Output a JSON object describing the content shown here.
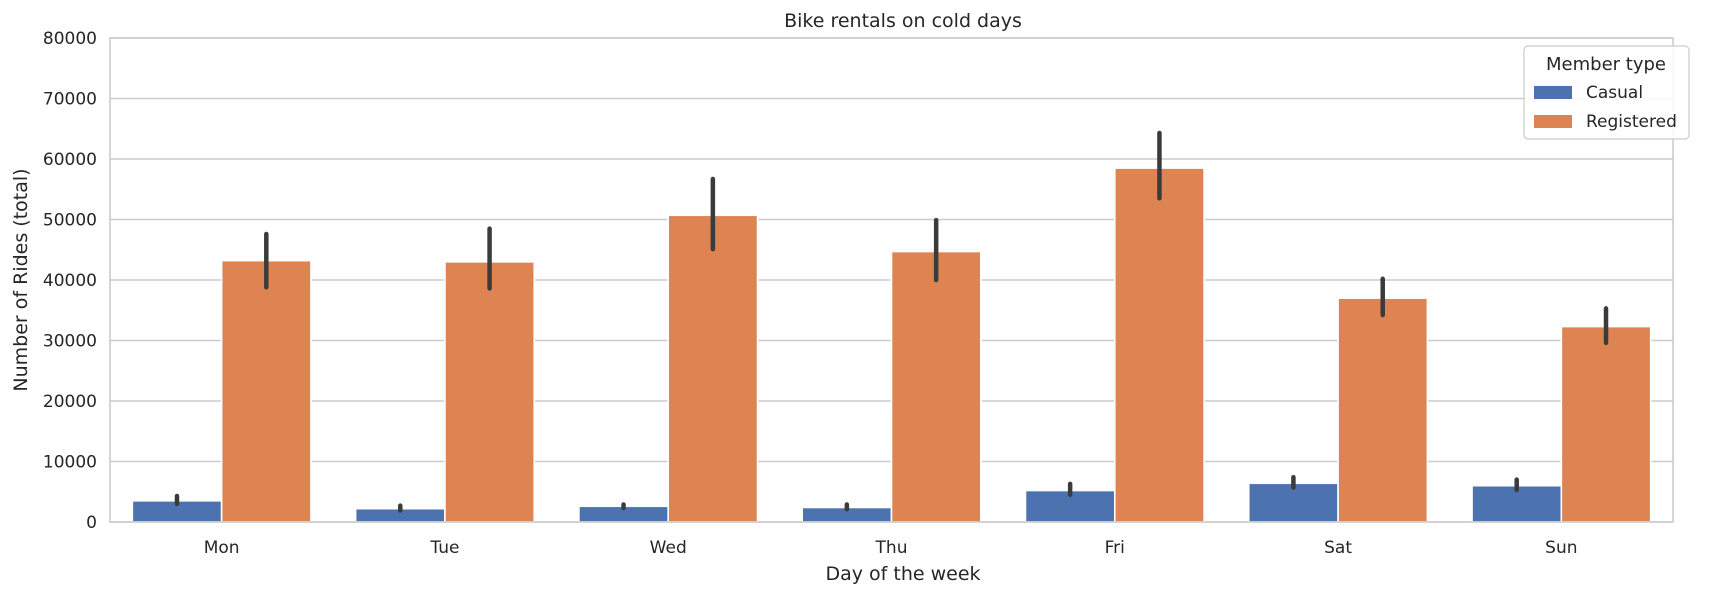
{
  "chart_data": {
    "type": "bar",
    "title": "Bike rentals on cold days",
    "xlabel": "Day of the week",
    "ylabel": "Number of Rides (total)",
    "categories": [
      "Mon",
      "Tue",
      "Wed",
      "Thu",
      "Fri",
      "Sat",
      "Sun"
    ],
    "ylim": [
      0,
      80000
    ],
    "yticks": [
      0,
      10000,
      20000,
      30000,
      40000,
      50000,
      60000,
      70000,
      80000
    ],
    "grid": true,
    "legend": {
      "title": "Member type",
      "placement": "top-right"
    },
    "series": [
      {
        "name": "Casual",
        "color": "#4c72b0",
        "values": [
          3500,
          2200,
          2600,
          2400,
          5200,
          6400,
          6000
        ],
        "error_low": [
          3000,
          1900,
          2300,
          2100,
          4500,
          5700,
          5300
        ],
        "error_high": [
          4300,
          2700,
          2900,
          2900,
          6300,
          7400,
          7000
        ]
      },
      {
        "name": "Registered",
        "color": "#dd8452",
        "values": [
          43200,
          43000,
          50700,
          44700,
          58500,
          37000,
          32300
        ],
        "error_low": [
          38800,
          38600,
          45100,
          40000,
          53500,
          34200,
          29600
        ],
        "error_high": [
          47600,
          48500,
          56700,
          49900,
          64300,
          40200,
          35300
        ]
      }
    ],
    "errorbar_color": "#3b3b3b"
  }
}
